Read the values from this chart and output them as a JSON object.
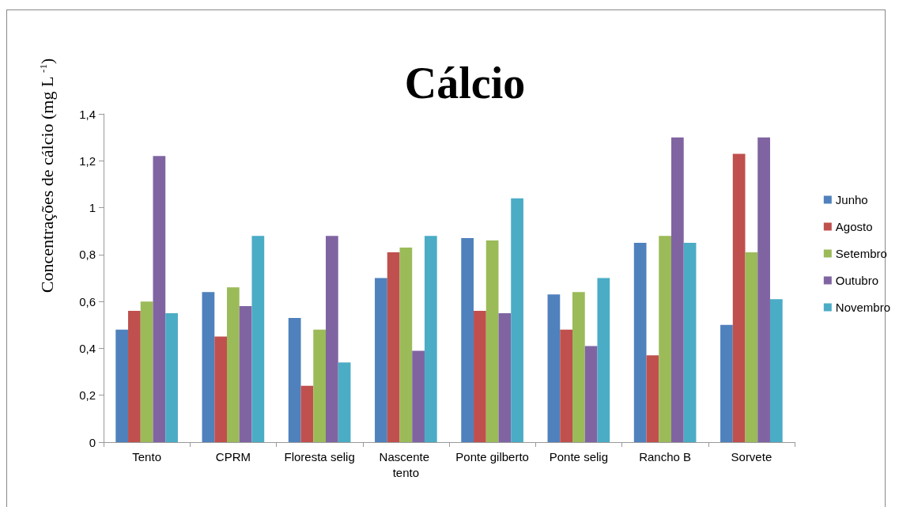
{
  "chart_data": {
    "type": "bar",
    "title": "Cálcio",
    "ylabel": "Concentrações de cálcio (mg L $^{-1}$)",
    "categories": [
      "Tento",
      "CPRM",
      "Floresta selig",
      "Nascente tento",
      "Ponte gilberto",
      "Ponte selig",
      "Rancho B",
      "Sorvete"
    ],
    "series": [
      {
        "name": "Junho",
        "color": "#4f81bd",
        "values": [
          0.48,
          0.64,
          0.53,
          0.7,
          0.87,
          0.63,
          0.85,
          0.5
        ]
      },
      {
        "name": "Agosto",
        "color": "#c0504d",
        "values": [
          0.56,
          0.45,
          0.24,
          0.81,
          0.56,
          0.48,
          0.37,
          1.23
        ]
      },
      {
        "name": "Setembro",
        "color": "#9bbb59",
        "values": [
          0.6,
          0.66,
          0.48,
          0.83,
          0.86,
          0.64,
          0.88,
          0.81
        ]
      },
      {
        "name": "Outubro",
        "color": "#8064a2",
        "values": [
          1.22,
          0.58,
          0.88,
          0.39,
          0.55,
          0.41,
          1.3,
          1.3
        ]
      },
      {
        "name": "Novembro",
        "color": "#4bacc6",
        "values": [
          0.55,
          0.88,
          0.34,
          0.88,
          1.04,
          0.7,
          0.85,
          0.61
        ]
      }
    ],
    "ylim": [
      0,
      1.4
    ],
    "yticks": [
      0,
      {
        "value": 0.2,
        "label": "0,2"
      },
      {
        "value": 0.4,
        "label": "0,4"
      },
      {
        "value": 0.6,
        "label": "0,6"
      },
      {
        "value": 0.8,
        "label": "0,8"
      },
      1,
      {
        "value": 1.2,
        "label": "1,2"
      },
      {
        "value": 1.4,
        "label": "1,4"
      }
    ],
    "grid": false,
    "legend": "right"
  }
}
